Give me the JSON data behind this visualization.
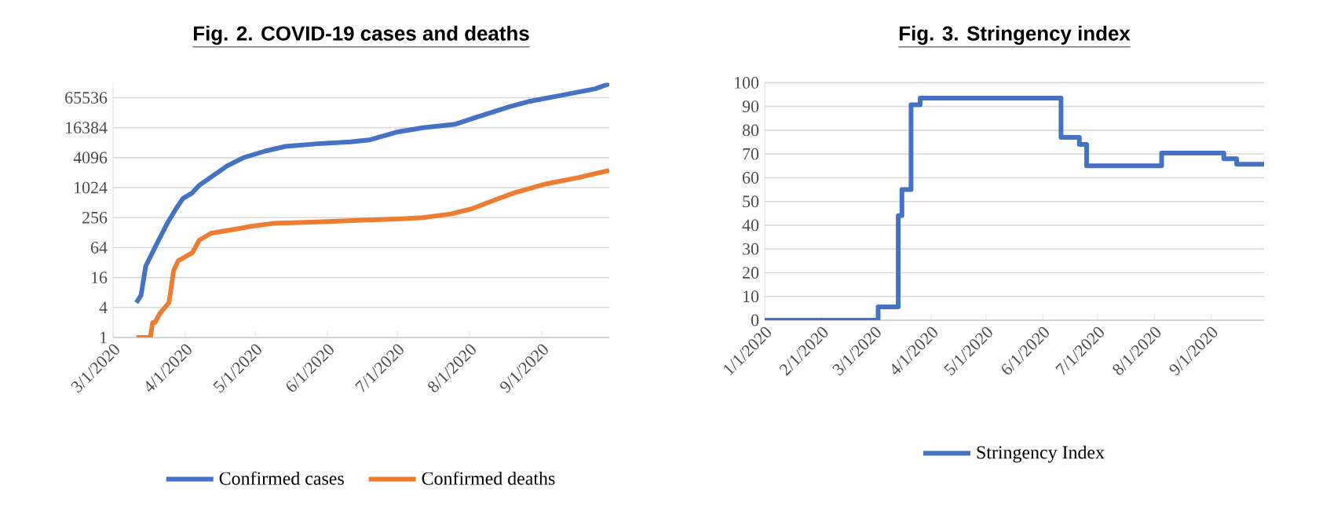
{
  "chart_data": [
    {
      "type": "line",
      "title": "Fig. 2. COVID-19 cases and deaths",
      "log": "y",
      "grid": "y",
      "legend": "bottom",
      "xlim": [
        "2020-03-01",
        "2020-09-30"
      ],
      "xticks": [
        {
          "value": "2020-03-01",
          "label": "3/1/2020"
        },
        {
          "value": "2020-04-01",
          "label": "4/1/2020"
        },
        {
          "value": "2020-05-01",
          "label": "5/1/2020"
        },
        {
          "value": "2020-06-01",
          "label": "6/1/2020"
        },
        {
          "value": "2020-07-01",
          "label": "7/1/2020"
        },
        {
          "value": "2020-08-01",
          "label": "8/1/2020"
        },
        {
          "value": "2020-09-01",
          "label": "9/1/2020"
        }
      ],
      "ylim": [
        1,
        131072
      ],
      "yticks": [
        1,
        4,
        16,
        64,
        256,
        1024,
        4096,
        16384,
        65536
      ],
      "series": [
        {
          "name": "Confirmed cases",
          "color": "#4472c4",
          "x": [
            "2020-03-11",
            "2020-03-13",
            "2020-03-15",
            "2020-03-20",
            "2020-03-24",
            "2020-03-28",
            "2020-03-31",
            "2020-04-04",
            "2020-04-07",
            "2020-04-19",
            "2020-04-26",
            "2020-05-05",
            "2020-05-14",
            "2020-05-28",
            "2020-06-11",
            "2020-06-19",
            "2020-07-01",
            "2020-07-12",
            "2020-07-26",
            "2020-08-04",
            "2020-08-18",
            "2020-08-27",
            "2020-09-10",
            "2020-09-24",
            "2020-09-30"
          ],
          "values": [
            5,
            7,
            27,
            80,
            186,
            385,
            620,
            800,
            1140,
            2800,
            4100,
            5500,
            6900,
            7800,
            8500,
            9300,
            13400,
            16300,
            19300,
            26600,
            43000,
            55700,
            74000,
            99000,
            125000
          ]
        },
        {
          "name": "Confirmed deaths",
          "color": "#ed7d31",
          "x": [
            "2020-03-11",
            "2020-03-17",
            "2020-03-18",
            "2020-03-19",
            "2020-03-21",
            "2020-03-25",
            "2020-03-27",
            "2020-03-29",
            "2020-04-04",
            "2020-04-07",
            "2020-04-12",
            "2020-04-21",
            "2020-04-30",
            "2020-05-09",
            "2020-05-28",
            "2020-06-14",
            "2020-07-01",
            "2020-07-12",
            "2020-07-24",
            "2020-08-02",
            "2020-08-11",
            "2020-08-20",
            "2020-09-03",
            "2020-09-17",
            "2020-09-30"
          ],
          "values": [
            1,
            1,
            2,
            2,
            3,
            5,
            22,
            35,
            50,
            90,
            124,
            146,
            173,
            196,
            210,
            226,
            240,
            256,
            303,
            385,
            560,
            800,
            1220,
            1640,
            2270
          ]
        }
      ]
    },
    {
      "type": "step",
      "title": "Fig. 3. Stringency index",
      "grid": "y",
      "legend": "bottom",
      "xlim": [
        "2020-01-01",
        "2020-09-30"
      ],
      "xticks": [
        {
          "value": "2020-01-01",
          "label": "1/1/2020"
        },
        {
          "value": "2020-02-01",
          "label": "2/1/2020"
        },
        {
          "value": "2020-03-01",
          "label": "3/1/2020"
        },
        {
          "value": "2020-04-01",
          "label": "4/1/2020"
        },
        {
          "value": "2020-05-01",
          "label": "5/1/2020"
        },
        {
          "value": "2020-06-01",
          "label": "6/1/2020"
        },
        {
          "value": "2020-07-01",
          "label": "7/1/2020"
        },
        {
          "value": "2020-08-01",
          "label": "8/1/2020"
        },
        {
          "value": "2020-09-01",
          "label": "9/1/2020"
        }
      ],
      "ylim": [
        0,
        100
      ],
      "yticks": [
        0,
        10,
        20,
        30,
        40,
        50,
        60,
        70,
        80,
        90,
        100
      ],
      "series": [
        {
          "name": "Stringency Index",
          "color": "#4472c4",
          "x": [
            "2020-01-01",
            "2020-03-03",
            "2020-03-14",
            "2020-03-16",
            "2020-03-21",
            "2020-03-26",
            "2020-06-11",
            "2020-06-21",
            "2020-06-25",
            "2020-08-05",
            "2020-09-08",
            "2020-09-15",
            "2020-09-30"
          ],
          "values": [
            0,
            5.6,
            44,
            55,
            90.7,
            93.5,
            77,
            74,
            65,
            70.4,
            68,
            65.7,
            65.7
          ]
        }
      ]
    }
  ]
}
